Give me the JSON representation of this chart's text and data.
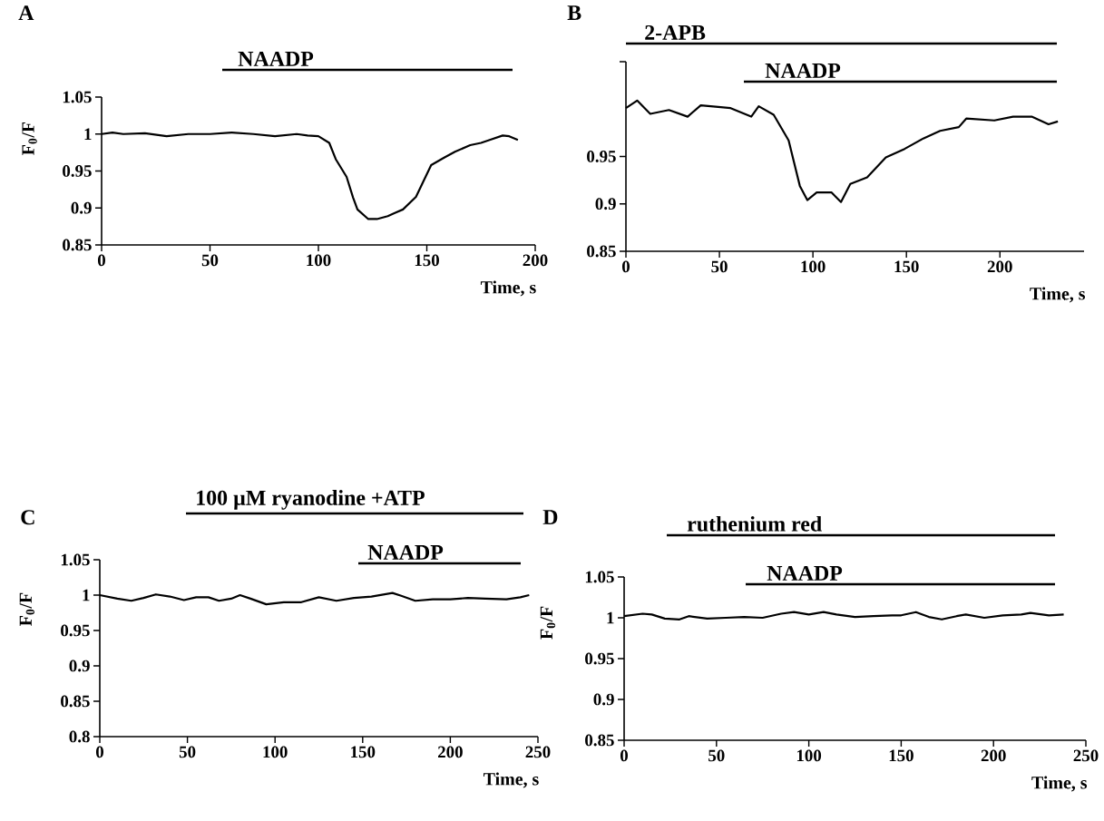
{
  "chart_data": [
    {
      "type": "line",
      "title": "A",
      "xlabel": "Time, s",
      "ylabel": "F$_{0}$/F",
      "color": "#000000",
      "x": [
        0,
        5,
        10,
        20,
        30,
        40,
        50,
        60,
        70,
        80,
        90,
        95,
        100,
        105,
        108,
        113,
        116,
        118,
        123,
        127,
        132,
        135,
        139,
        145,
        152,
        158,
        163,
        170,
        175,
        179,
        185,
        188,
        192
      ],
      "values": [
        1.0,
        1.002,
        1.0,
        1.001,
        0.997,
        1.0,
        1.0,
        1.002,
        1.0,
        0.997,
        1.0,
        0.998,
        0.997,
        0.988,
        0.966,
        0.942,
        0.914,
        0.898,
        0.885,
        0.885,
        0.889,
        0.893,
        0.898,
        0.915,
        0.958,
        0.968,
        0.976,
        0.985,
        0.988,
        0.992,
        0.998,
        0.997,
        0.992
      ],
      "xlim": [
        0,
        200
      ],
      "ylim": [
        0.85,
        1.05
      ],
      "xticks": [
        0,
        50,
        100,
        150,
        200
      ],
      "yticks": [
        0.85,
        0.9,
        0.95,
        1,
        1.05
      ],
      "annotations": [
        "NAADP"
      ]
    },
    {
      "type": "line",
      "title": "B",
      "xlabel": "Time, s",
      "color": "#000000",
      "x": [
        0,
        6,
        13,
        23,
        33,
        40,
        56,
        67,
        71,
        79,
        87,
        93,
        97,
        102,
        110,
        115,
        120,
        129,
        139,
        149,
        159,
        168,
        178,
        182,
        197,
        207,
        217,
        226,
        231
      ],
      "values": [
        1.001,
        1.009,
        0.995,
        0.999,
        0.992,
        1.004,
        1.001,
        0.992,
        1.003,
        0.994,
        0.967,
        0.919,
        0.904,
        0.912,
        0.912,
        0.902,
        0.921,
        0.928,
        0.949,
        0.958,
        0.969,
        0.977,
        0.981,
        0.99,
        0.988,
        0.992,
        0.992,
        0.984,
        0.987
      ],
      "xlim": [
        0,
        245
      ],
      "ylim": [
        0.85,
        1.05
      ],
      "xticks": [
        0,
        50,
        100,
        150,
        200
      ],
      "yticks": [
        0.85,
        0.9,
        0.95,
        {
          "value": 1.05,
          "label": null
        }
      ],
      "annotations": [
        "2-APB",
        "NAADP"
      ]
    },
    {
      "type": "line",
      "title": "C",
      "xlabel": "Time, s",
      "ylabel": "F$_{0}$/F",
      "color": "#000000",
      "x": [
        0,
        10,
        18,
        25,
        32,
        40,
        48,
        55,
        62,
        68,
        75,
        80,
        86,
        95,
        105,
        115,
        125,
        135,
        145,
        155,
        167,
        172,
        180,
        190,
        200,
        210,
        220,
        232,
        240,
        245
      ],
      "values": [
        1.0,
        0.995,
        0.992,
        0.996,
        1.001,
        0.998,
        0.993,
        0.997,
        0.997,
        0.992,
        0.995,
        1.0,
        0.995,
        0.987,
        0.99,
        0.99,
        0.997,
        0.992,
        0.996,
        0.998,
        1.003,
        0.999,
        0.992,
        0.994,
        0.994,
        0.996,
        0.995,
        0.994,
        0.997,
        1.0
      ],
      "xlim": [
        0,
        250
      ],
      "ylim": [
        0.8,
        1.05
      ],
      "xticks": [
        0,
        50,
        100,
        150,
        200,
        250
      ],
      "yticks": [
        0.8,
        0.85,
        0.9,
        0.95,
        1,
        1.05
      ],
      "annotations": [
        "100 µM ryanodine +ATP",
        "NAADP"
      ]
    },
    {
      "type": "line",
      "title": "D",
      "xlabel": "Time, s",
      "ylabel": "F$_{0}$/F",
      "color": "#000000",
      "x": [
        0,
        10,
        15,
        22,
        30,
        35,
        45,
        55,
        65,
        75,
        85,
        92,
        100,
        108,
        115,
        125,
        135,
        145,
        150,
        158,
        165,
        172,
        180,
        185,
        195,
        205,
        215,
        220,
        230,
        238
      ],
      "values": [
        1.002,
        1.005,
        1.004,
        0.999,
        0.998,
        1.002,
        0.999,
        1.0,
        1.001,
        1.0,
        1.005,
        1.007,
        1.004,
        1.007,
        1.004,
        1.001,
        1.002,
        1.003,
        1.003,
        1.007,
        1.001,
        0.998,
        1.002,
        1.004,
        1.0,
        1.003,
        1.004,
        1.006,
        1.003,
        1.004
      ],
      "xlim": [
        0,
        250
      ],
      "ylim": [
        0.85,
        1.05
      ],
      "xticks": [
        0,
        50,
        100,
        150,
        200,
        250
      ],
      "yticks": [
        0.85,
        0.9,
        0.95,
        1,
        1.05
      ],
      "annotations": [
        "ruthenium red",
        "NAADP"
      ]
    }
  ]
}
